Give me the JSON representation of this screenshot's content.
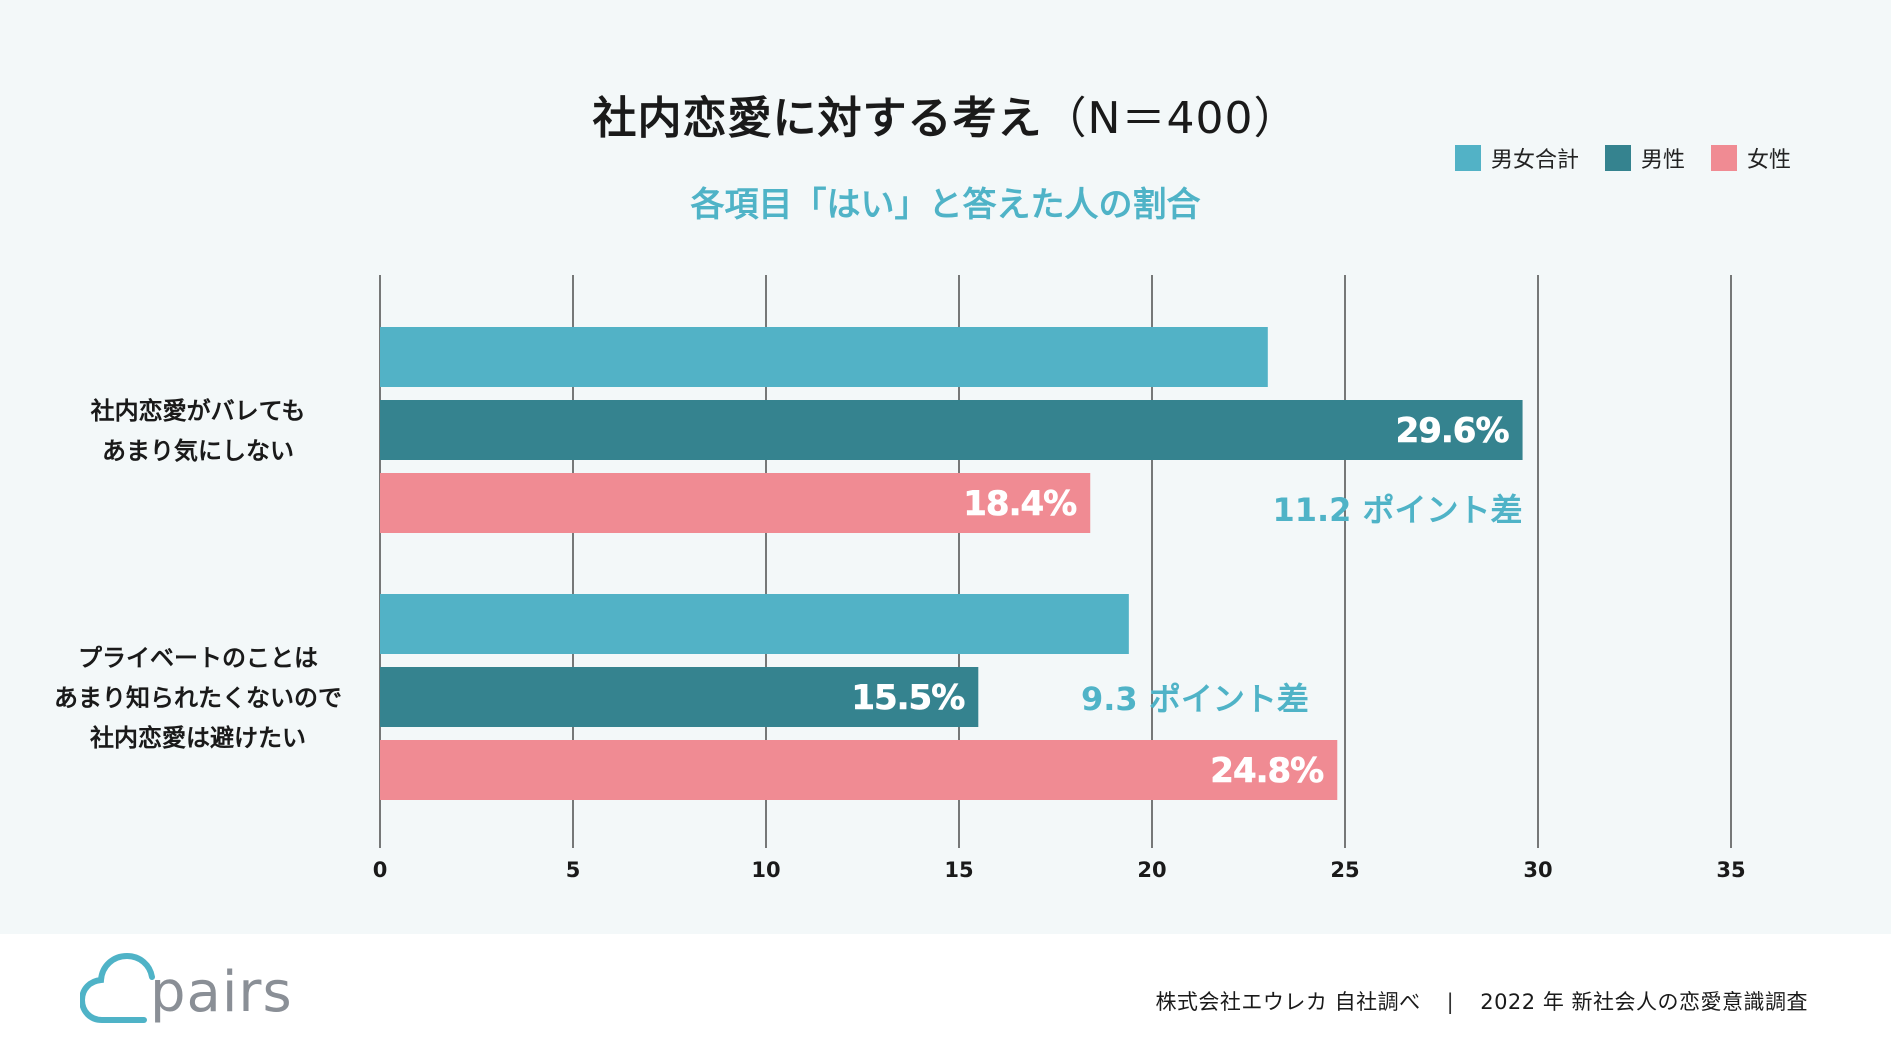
{
  "chart_data": {
    "type": "bar",
    "orientation": "horizontal",
    "title": "社内恋愛に対する考え",
    "title_n": "（N＝400）",
    "subtitle": "各項目「はい」と答えた人の割合",
    "xlim": [
      0,
      35
    ],
    "x_ticks": [
      0,
      5,
      10,
      15,
      20,
      25,
      30,
      35
    ],
    "categories": [
      [
        "社内恋愛がバレても",
        "あまり気にしない"
      ],
      [
        "プライベートのことは",
        "あまり知られたくないので",
        "社内恋愛は避けたい"
      ]
    ],
    "series": [
      {
        "name": "男女合計",
        "color": "#52b2c6",
        "values": [
          23.0,
          19.4
        ],
        "labels": [
          "",
          ""
        ]
      },
      {
        "name": "男性",
        "color": "#35838f",
        "values": [
          29.6,
          15.5
        ],
        "labels": [
          "29.6%",
          "15.5%"
        ]
      },
      {
        "name": "女性",
        "color": "#f08b93",
        "values": [
          18.4,
          24.8
        ],
        "labels": [
          "18.4%",
          "24.8%"
        ]
      }
    ],
    "annotations": [
      {
        "category_index": 0,
        "text": "11.2 ポイント差",
        "anchor_value": 29.6
      },
      {
        "category_index": 1,
        "text": "9.3 ポイント差",
        "anchor_value": 15.5
      }
    ],
    "legend_position": "top-right",
    "grid": true
  },
  "colors": {
    "accent": "#4fb3c7",
    "total": "#52b2c6",
    "male": "#35838f",
    "female": "#f08b93",
    "logo": "#4fb3c7"
  },
  "footer": {
    "logo_text": "pairs",
    "credit_left": "株式会社エウレカ 自社調べ",
    "credit_separator": "|",
    "credit_right": "2022 年 新社会人の恋愛意識調査"
  }
}
